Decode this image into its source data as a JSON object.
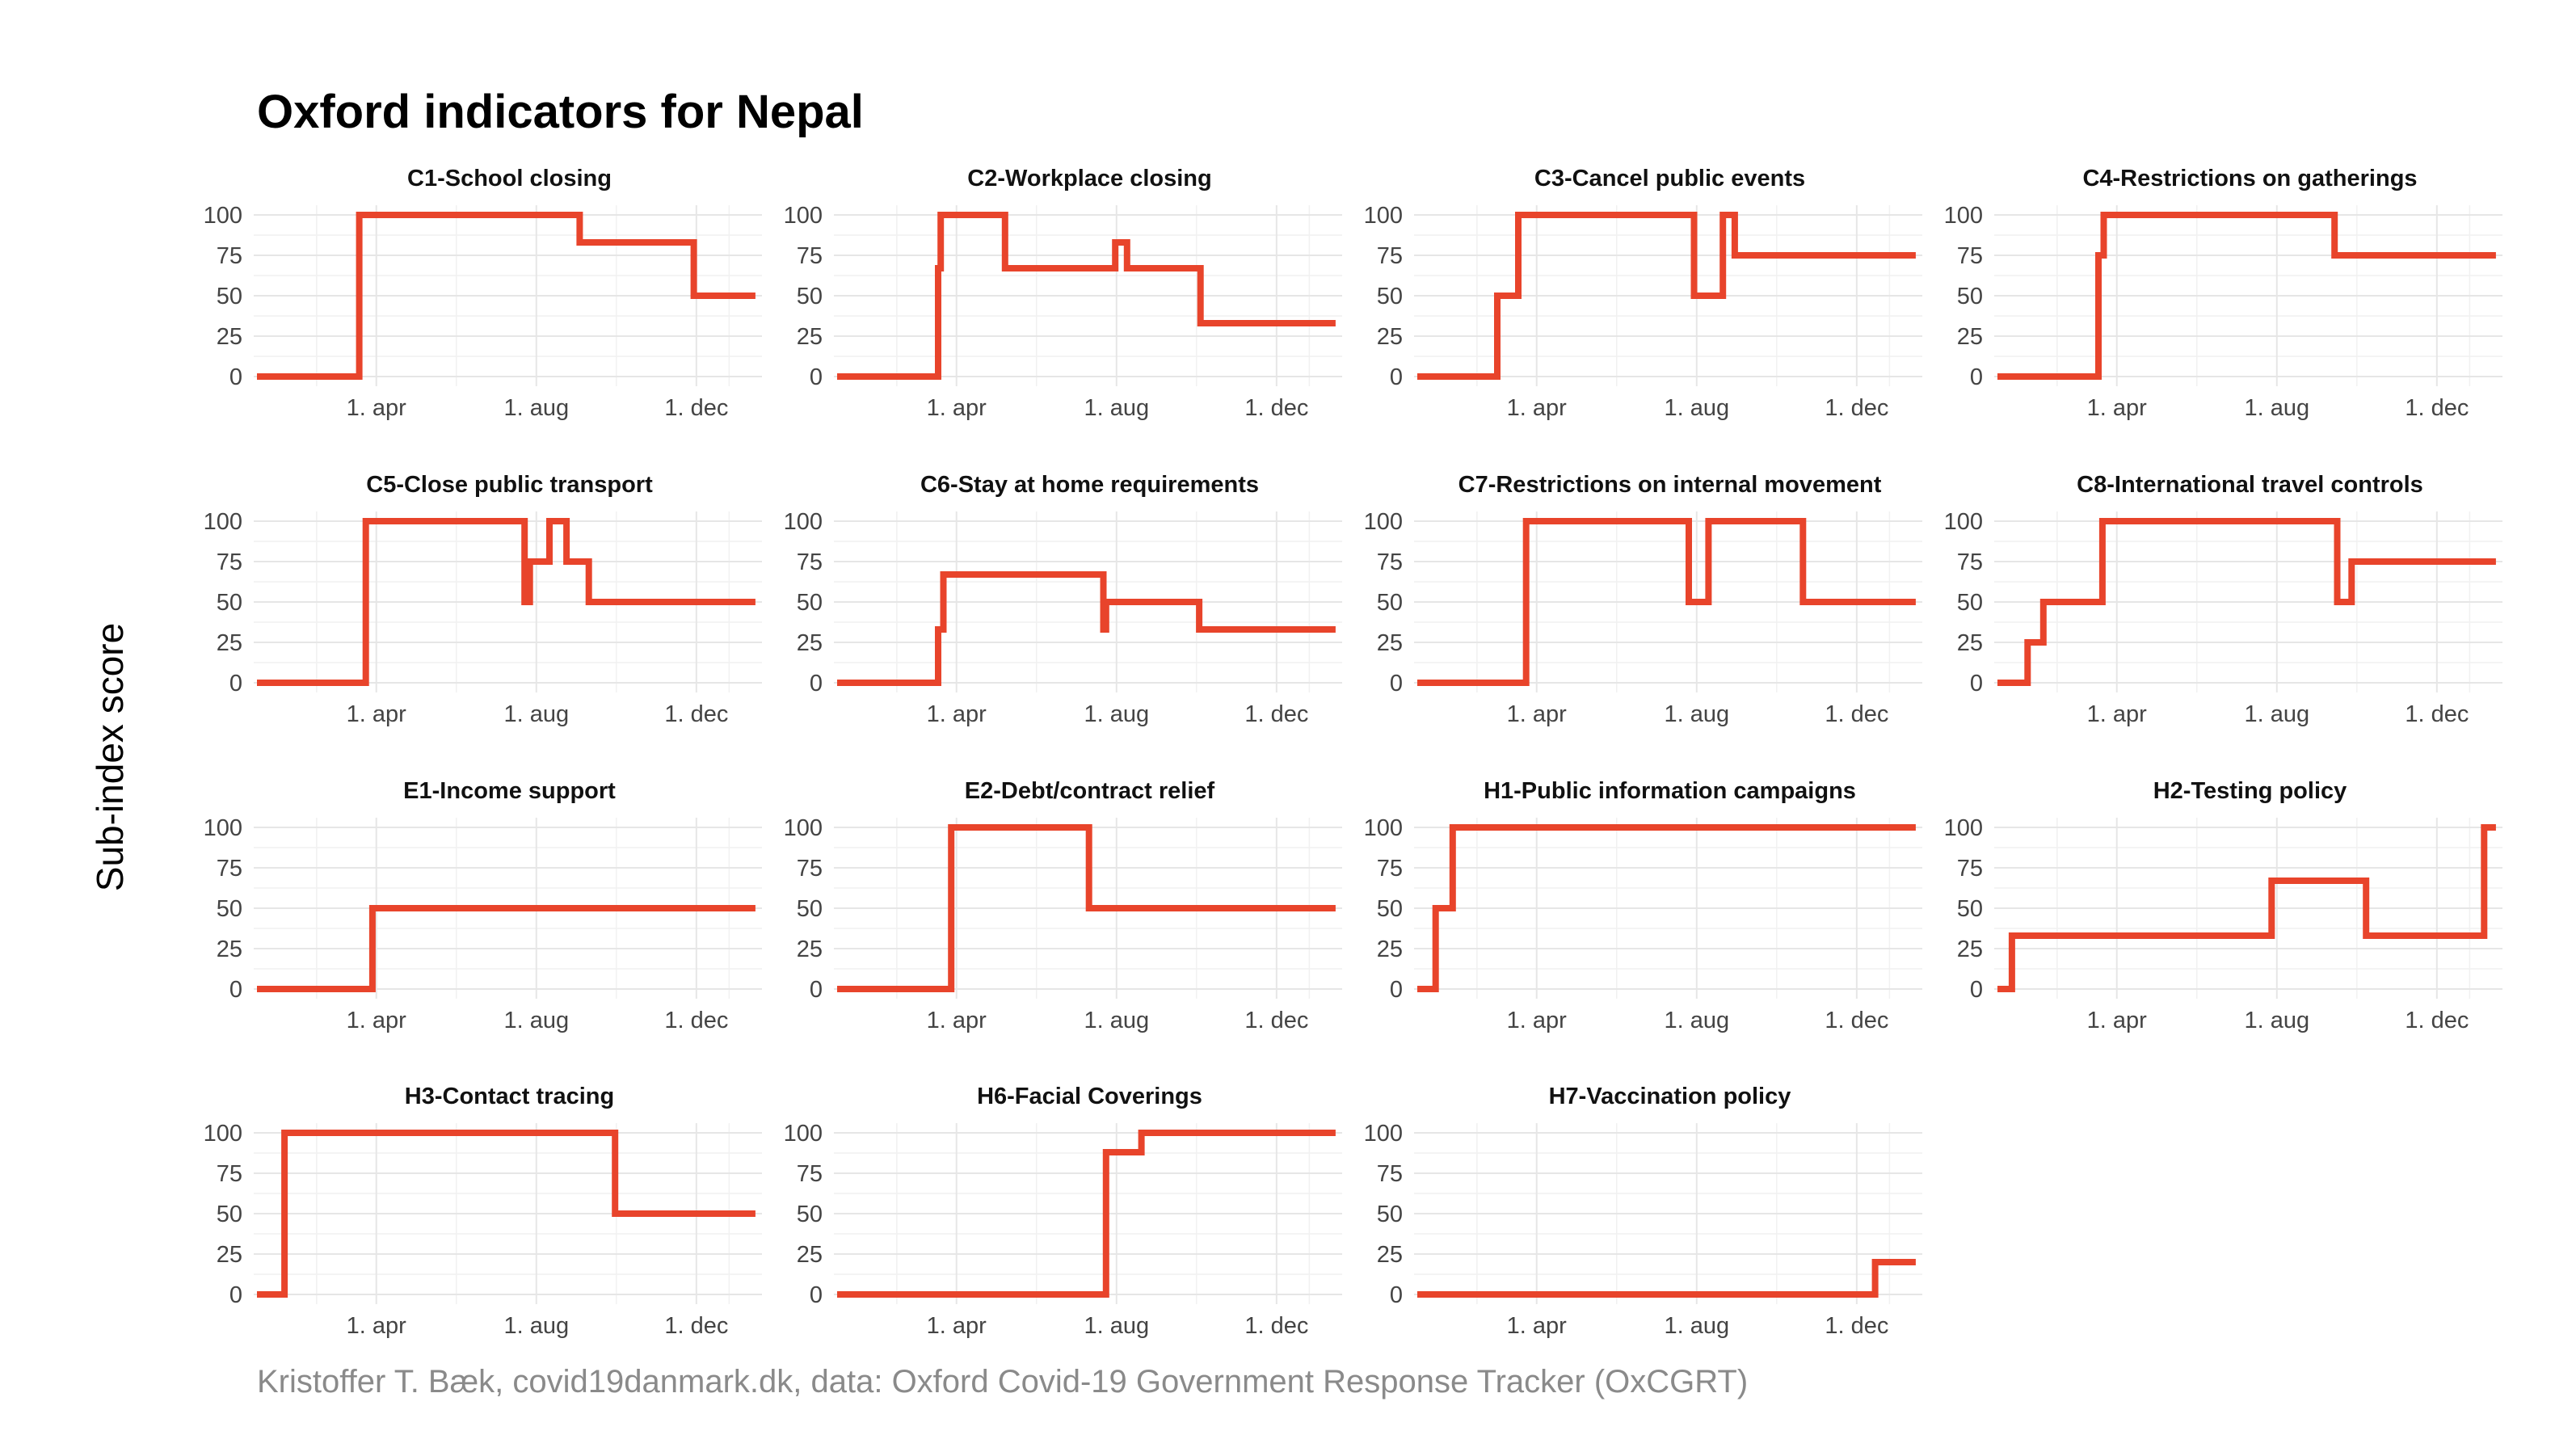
{
  "title": "Oxford indicators for Nepal",
  "ylabel": "Sub-index score",
  "caption": "Kristoffer T. Bæk, covid19danmark.dk, data: Oxford Covid-19 Government Response Tracker (OxCGRT)",
  "colors": {
    "line": "#e8442b",
    "grid": "#e6e6e6",
    "text": "#444444",
    "caption": "#8a8a8a"
  },
  "chart_data": {
    "type": "line",
    "layout": "facet-grid 4x4, step lines",
    "x_axis": {
      "type": "date",
      "range": [
        "2020-01-01",
        "2021-01-20"
      ],
      "tick_labels": [
        "1. apr",
        "1. aug",
        "1. dec"
      ],
      "tick_dates": [
        "2020-04-01",
        "2020-08-01",
        "2020-12-01"
      ]
    },
    "y_axis": {
      "range": [
        0,
        100
      ],
      "ticks": [
        0,
        25,
        50,
        75,
        100
      ]
    },
    "grid": true,
    "panels": [
      {
        "name": "C1-School closing",
        "steps": [
          [
            "2020-01-01",
            0
          ],
          [
            "2020-03-19",
            100
          ],
          [
            "2020-09-03",
            83
          ],
          [
            "2020-11-29",
            50
          ],
          [
            "2021-01-15",
            50
          ]
        ]
      },
      {
        "name": "C2-Workplace closing",
        "steps": [
          [
            "2020-01-01",
            0
          ],
          [
            "2020-03-18",
            67
          ],
          [
            "2020-03-20",
            100
          ],
          [
            "2020-05-08",
            67
          ],
          [
            "2020-07-31",
            83
          ],
          [
            "2020-08-09",
            67
          ],
          [
            "2020-10-04",
            33
          ],
          [
            "2021-01-15",
            33
          ]
        ]
      },
      {
        "name": "C3-Cancel public events",
        "steps": [
          [
            "2020-01-01",
            0
          ],
          [
            "2020-03-02",
            50
          ],
          [
            "2020-03-18",
            100
          ],
          [
            "2020-07-30",
            50
          ],
          [
            "2020-08-21",
            100
          ],
          [
            "2020-08-30",
            75
          ],
          [
            "2021-01-15",
            75
          ]
        ]
      },
      {
        "name": "C4-Restrictions on gatherings",
        "steps": [
          [
            "2020-01-01",
            0
          ],
          [
            "2020-03-18",
            75
          ],
          [
            "2020-03-22",
            100
          ],
          [
            "2020-09-14",
            75
          ],
          [
            "2021-01-15",
            75
          ]
        ]
      },
      {
        "name": "C5-Close public transport",
        "steps": [
          [
            "2020-01-01",
            0
          ],
          [
            "2020-03-24",
            100
          ],
          [
            "2020-07-23",
            50
          ],
          [
            "2020-07-27",
            75
          ],
          [
            "2020-08-11",
            100
          ],
          [
            "2020-08-24",
            75
          ],
          [
            "2020-09-10",
            50
          ],
          [
            "2021-01-15",
            50
          ]
        ]
      },
      {
        "name": "C6-Stay at home requirements",
        "steps": [
          [
            "2020-01-01",
            0
          ],
          [
            "2020-03-18",
            33
          ],
          [
            "2020-03-22",
            67
          ],
          [
            "2020-07-22",
            33
          ],
          [
            "2020-07-24",
            50
          ],
          [
            "2020-10-03",
            33
          ],
          [
            "2021-01-15",
            33
          ]
        ]
      },
      {
        "name": "C7-Restrictions on internal movement",
        "steps": [
          [
            "2020-01-01",
            0
          ],
          [
            "2020-03-24",
            100
          ],
          [
            "2020-07-26",
            50
          ],
          [
            "2020-08-10",
            100
          ],
          [
            "2020-10-21",
            50
          ],
          [
            "2021-01-15",
            50
          ]
        ]
      },
      {
        "name": "C8-International travel controls",
        "steps": [
          [
            "2020-01-01",
            0
          ],
          [
            "2020-01-24",
            25
          ],
          [
            "2020-02-05",
            50
          ],
          [
            "2020-03-21",
            100
          ],
          [
            "2020-09-16",
            50
          ],
          [
            "2020-09-27",
            75
          ],
          [
            "2021-01-15",
            75
          ]
        ]
      },
      {
        "name": "E1-Income support",
        "steps": [
          [
            "2020-01-01",
            0
          ],
          [
            "2020-03-29",
            50
          ],
          [
            "2021-01-15",
            50
          ]
        ]
      },
      {
        "name": "E2-Debt/contract relief",
        "steps": [
          [
            "2020-01-01",
            0
          ],
          [
            "2020-03-28",
            100
          ],
          [
            "2020-07-11",
            50
          ],
          [
            "2021-01-15",
            50
          ]
        ]
      },
      {
        "name": "H1-Public information campaigns",
        "steps": [
          [
            "2020-01-01",
            0
          ],
          [
            "2020-01-15",
            50
          ],
          [
            "2020-01-28",
            100
          ],
          [
            "2021-01-15",
            100
          ]
        ]
      },
      {
        "name": "H2-Testing policy",
        "steps": [
          [
            "2020-01-01",
            0
          ],
          [
            "2020-01-12",
            33
          ],
          [
            "2020-07-28",
            67
          ],
          [
            "2020-10-08",
            33
          ],
          [
            "2021-01-06",
            100
          ],
          [
            "2021-01-15",
            100
          ]
        ]
      },
      {
        "name": "H3-Contact tracing",
        "steps": [
          [
            "2020-01-01",
            0
          ],
          [
            "2020-01-22",
            100
          ],
          [
            "2020-09-30",
            50
          ],
          [
            "2021-01-15",
            50
          ]
        ]
      },
      {
        "name": "H6-Facial Coverings",
        "steps": [
          [
            "2020-01-01",
            0
          ],
          [
            "2020-07-24",
            88
          ],
          [
            "2020-08-20",
            100
          ],
          [
            "2021-01-15",
            100
          ]
        ]
      },
      {
        "name": "H7-Vaccination policy",
        "steps": [
          [
            "2020-01-01",
            0
          ],
          [
            "2020-12-15",
            20
          ],
          [
            "2021-01-15",
            20
          ]
        ]
      }
    ]
  }
}
